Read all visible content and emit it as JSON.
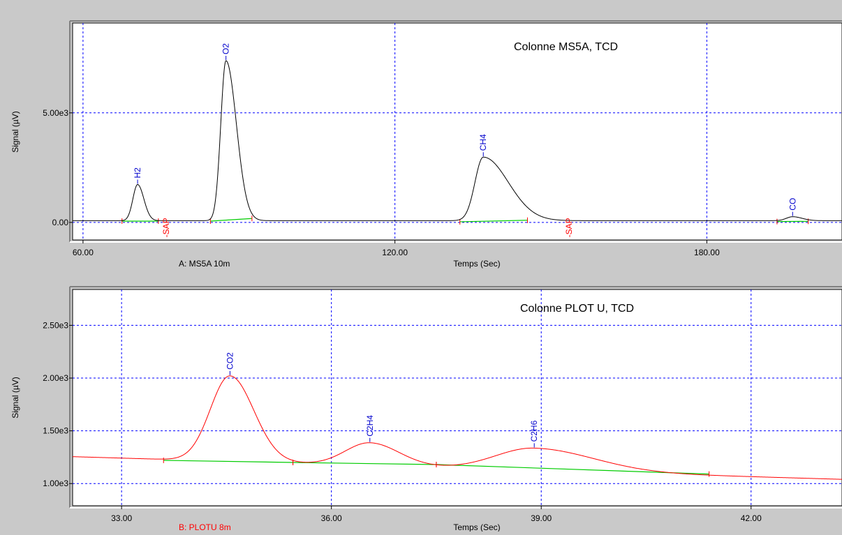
{
  "colors": {
    "background": "#c9c9c9",
    "plot_bg": "#ffffff",
    "grid": "#0000ff",
    "trace_top": "#000000",
    "trace_bottom": "#ff0000",
    "baseline": "#00cc00",
    "peak_label": "#0000cc",
    "event_label": "#ff0000"
  },
  "chart_data": [
    {
      "type": "line",
      "title": "Colonne MS5A, TCD",
      "xlabel": "Temps (Sec)",
      "ylabel": "Signal (µV)",
      "channel_label": "A: MS5A 10m",
      "xlim": [
        58,
        206
      ],
      "ylim": [
        -800,
        9100
      ],
      "x_ticks": [
        60,
        120,
        180
      ],
      "x_tick_labels": [
        "60.00",
        "120.00",
        "180.00"
      ],
      "y_ticks": [
        0,
        5000
      ],
      "y_tick_labels": [
        "0.00",
        "5.00e3"
      ],
      "grid": true,
      "baseline_level": 80,
      "peaks": [
        {
          "name": "H2",
          "rt": 70.5,
          "height": 1650,
          "sigma_left": 0.9,
          "sigma_right": 1.2
        },
        {
          "name": "O2",
          "rt": 87.5,
          "height": 7300,
          "sigma_left": 1.0,
          "sigma_right": 2.0
        },
        {
          "name": "CH4",
          "rt": 137.0,
          "height": 2900,
          "sigma_left": 1.6,
          "sigma_right": 4.8
        },
        {
          "name": "CO",
          "rt": 196.5,
          "height": 180,
          "sigma_left": 1.2,
          "sigma_right": 1.8
        }
      ],
      "events": [
        {
          "label": "-SAP",
          "x": 76.0
        },
        {
          "label": "-SAP",
          "x": 153.5
        }
      ],
      "baseline_segments": [
        {
          "x1": 67.5,
          "y1": 60,
          "x2": 74.5,
          "y2": 60
        },
        {
          "x1": 84.5,
          "y1": 60,
          "x2": 92.5,
          "y2": 180
        },
        {
          "x1": 132.5,
          "y1": 30,
          "x2": 145.5,
          "y2": 100
        },
        {
          "x1": 193.5,
          "y1": 40,
          "x2": 199.5,
          "y2": 50
        }
      ]
    },
    {
      "type": "line",
      "title": "Colonne PLOT U, TCD",
      "xlabel": "Temps (Sec)",
      "ylabel": "Signal (µV)",
      "channel_label": "B: PLOTU 8m",
      "xlim": [
        32.3,
        43.3
      ],
      "ylim": [
        790,
        2840
      ],
      "x_ticks": [
        33,
        36,
        39,
        42
      ],
      "x_tick_labels": [
        "33.00",
        "36.00",
        "39.00",
        "42.00"
      ],
      "y_ticks": [
        1000,
        1500,
        2000,
        2500
      ],
      "y_tick_labels": [
        "1.00e3",
        "1.50e3",
        "2.00e3",
        "2.50e3"
      ],
      "grid": true,
      "baseline_start": [
        32.3,
        1255
      ],
      "baseline_end": [
        43.3,
        1040
      ],
      "peaks": [
        {
          "name": "CO2",
          "rt": 34.55,
          "height": 810,
          "sigma_left": 0.28,
          "sigma_right": 0.34
        },
        {
          "name": "C2H4",
          "rt": 36.55,
          "height": 215,
          "sigma_left": 0.35,
          "sigma_right": 0.42
        },
        {
          "name": "C2H6",
          "rt": 38.9,
          "height": 210,
          "sigma_left": 0.55,
          "sigma_right": 0.85
        }
      ],
      "baseline_segments": [
        {
          "x1": 33.6,
          "y1": 1220,
          "x2": 35.45,
          "y2": 1200
        },
        {
          "x1": 35.45,
          "y1": 1200,
          "x2": 37.5,
          "y2": 1180
        },
        {
          "x1": 37.5,
          "y1": 1180,
          "x2": 41.4,
          "y2": 1090
        }
      ]
    }
  ]
}
